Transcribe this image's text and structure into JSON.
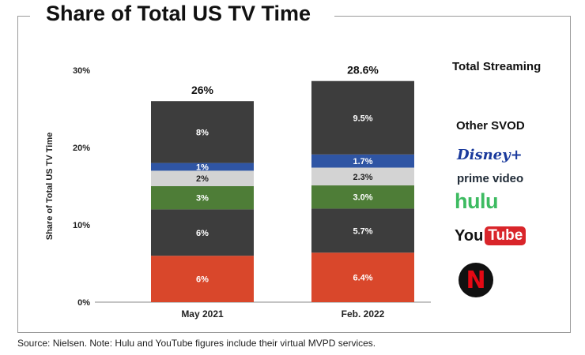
{
  "page": {
    "title": "Share of Total US TV Time",
    "source": "Source: Nielsen. Note: Hulu and YouTube figures include their virtual MVPD services."
  },
  "legend": {
    "total_streaming": "Total Streaming",
    "other_svod": "Other SVOD",
    "logos": {
      "disney": "Disney+",
      "prime": "prime video",
      "hulu": "hulu",
      "youtube_you": "You",
      "youtube_tube": "Tube",
      "netflix": "N"
    }
  },
  "colors": {
    "other_svod": "#3d3d3d",
    "disney": "#2f55a4",
    "prime": "#d3d3d3",
    "hulu": "#4e7d37",
    "youtube": "#3d3d3d",
    "netflix": "#d9472b"
  },
  "chart_data": {
    "type": "bar",
    "stacked": true,
    "title": "Share of Total US TV Time",
    "ylabel": "Share of Total US TV Time",
    "xlabel": "",
    "ylim": [
      0,
      30
    ],
    "yticks": [
      "0%",
      "10%",
      "20%",
      "30%"
    ],
    "categories": [
      "May 2021",
      "Feb. 2022"
    ],
    "totals": [
      26,
      28.6
    ],
    "total_labels": [
      "26%",
      "28.6%"
    ],
    "series": [
      {
        "name": "Netflix",
        "values": [
          6,
          6.4
        ],
        "labels": [
          "6%",
          "6.4%"
        ]
      },
      {
        "name": "YouTube",
        "values": [
          6,
          5.7
        ],
        "labels": [
          "6%",
          "5.7%"
        ]
      },
      {
        "name": "Hulu",
        "values": [
          3,
          3.0
        ],
        "labels": [
          "3%",
          "3.0%"
        ]
      },
      {
        "name": "Prime Video",
        "values": [
          2,
          2.3
        ],
        "labels": [
          "2%",
          "2.3%"
        ]
      },
      {
        "name": "Disney+",
        "values": [
          1,
          1.7
        ],
        "labels": [
          "1%",
          "1.7%"
        ]
      },
      {
        "name": "Other SVOD",
        "values": [
          8,
          9.5
        ],
        "labels": [
          "8%",
          "9.5%"
        ]
      }
    ]
  }
}
